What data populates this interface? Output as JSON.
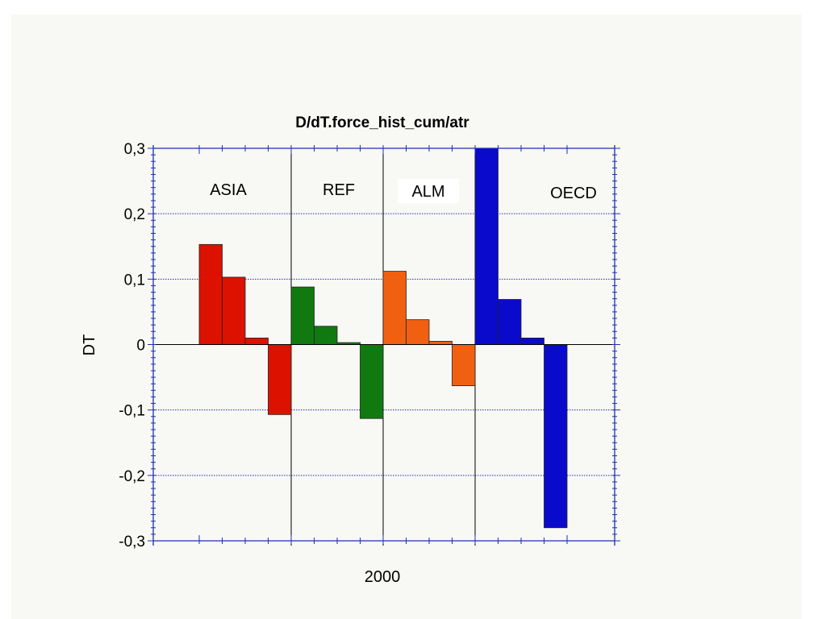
{
  "chart_data": {
    "type": "bar",
    "title": "D/dT.force_hist_cum/atr",
    "xlabel": "2000",
    "ylabel": "DT",
    "ylim": [
      -0.3,
      0.3
    ],
    "yticks": [
      0.3,
      0.2,
      0.1,
      0,
      -0.1,
      -0.2,
      -0.3
    ],
    "yticklabels": [
      "0,3",
      "0,2",
      "0,1",
      "0",
      "-0,1",
      "-0,2",
      "-0,3"
    ],
    "grid": true,
    "groups": [
      {
        "label": "ASIA",
        "color": "#dd1100",
        "values": [
          0.153,
          0.103,
          0.01,
          -0.107
        ]
      },
      {
        "label": "REF",
        "color": "#107a10",
        "values": [
          0.088,
          0.028,
          0.003,
          -0.113
        ]
      },
      {
        "label": "ALM",
        "color": "#f06010",
        "values": [
          0.112,
          0.038,
          0.005,
          -0.063
        ]
      },
      {
        "label": "OECD",
        "color": "#0a0acc",
        "values": [
          0.3,
          0.069,
          0.01,
          -0.28
        ]
      }
    ]
  }
}
